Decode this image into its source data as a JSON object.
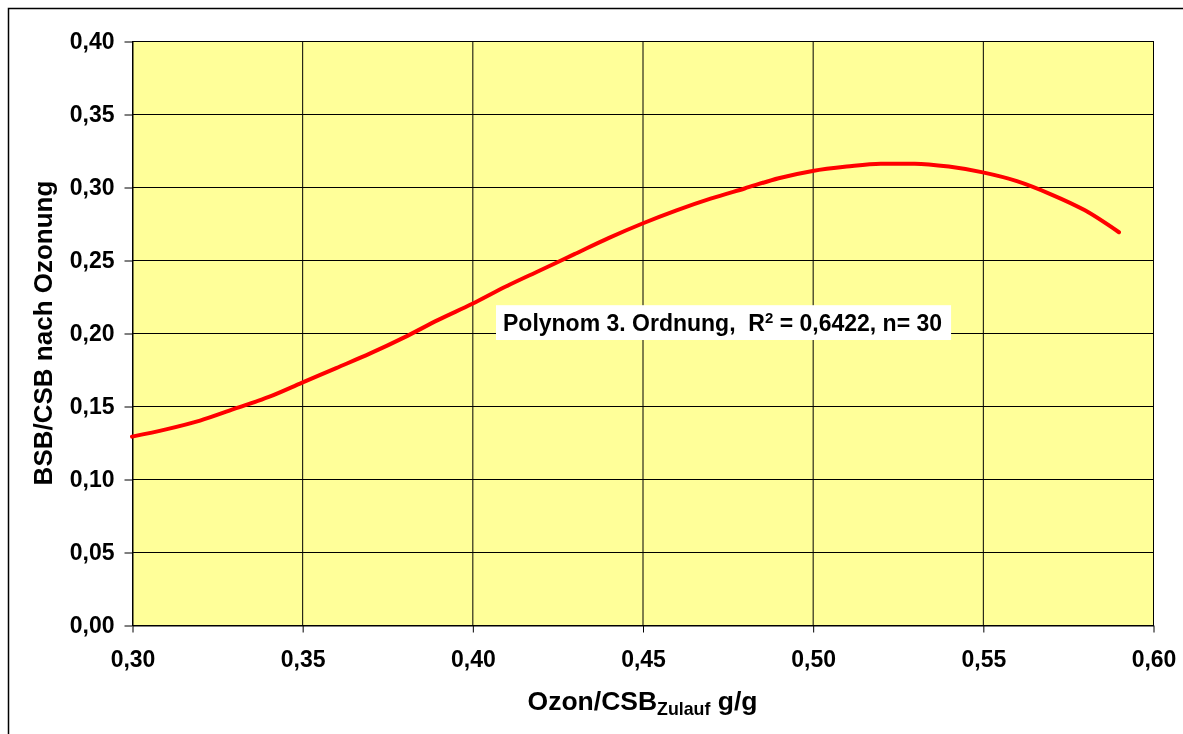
{
  "chart_data": {
    "type": "line",
    "xlabel": "Ozon/CSB$_{Zulauf}$ g/g",
    "ylabel": "BSB/CSB nach Ozonung",
    "annotations": [
      "Polynom 3. Ordnung,  R$^{2}$ = 0,6422, n= 30"
    ],
    "x": [
      0.3,
      0.31,
      0.32,
      0.33,
      0.34,
      0.35,
      0.36,
      0.37,
      0.38,
      0.39,
      0.4,
      0.41,
      0.42,
      0.43,
      0.44,
      0.45,
      0.46,
      0.47,
      0.48,
      0.49,
      0.5,
      0.51,
      0.52,
      0.53,
      0.54,
      0.55,
      0.56,
      0.57,
      0.58,
      0.59
    ],
    "series": [
      {
        "color": "#ff0000",
        "values": [
          0.129,
          0.134,
          0.14,
          0.148,
          0.156,
          0.166,
          0.176,
          0.186,
          0.197,
          0.209,
          0.22,
          0.232,
          0.243,
          0.254,
          0.265,
          0.275,
          0.284,
          0.292,
          0.299,
          0.306,
          0.311,
          0.314,
          0.316,
          0.316,
          0.314,
          0.31,
          0.304,
          0.295,
          0.284,
          0.269
        ]
      }
    ],
    "xlim": [
      0.3,
      0.6
    ],
    "xticks": [
      {
        "value": 0.3,
        "label": "0,30"
      },
      {
        "value": 0.35,
        "label": "0,35"
      },
      {
        "value": 0.4,
        "label": "0,40"
      },
      {
        "value": 0.45,
        "label": "0,45"
      },
      {
        "value": 0.5,
        "label": "0,50"
      },
      {
        "value": 0.55,
        "label": "0,55"
      },
      {
        "value": 0.6,
        "label": "0,60"
      }
    ],
    "ylim": [
      0,
      0.4
    ],
    "yticks": [
      {
        "value": 0,
        "label": "0,00"
      },
      {
        "value": 0.05,
        "label": "0,05"
      },
      {
        "value": 0.1,
        "label": "0,10"
      },
      {
        "value": 0.15,
        "label": "0,15"
      },
      {
        "value": 0.2,
        "label": "0,20"
      },
      {
        "value": 0.25,
        "label": "0,25"
      },
      {
        "value": 0.3,
        "label": "0,30"
      },
      {
        "value": 0.35,
        "label": "0,35"
      },
      {
        "value": 0.4,
        "label": "0,40"
      }
    ],
    "grid": true,
    "line_style": "solid"
  }
}
